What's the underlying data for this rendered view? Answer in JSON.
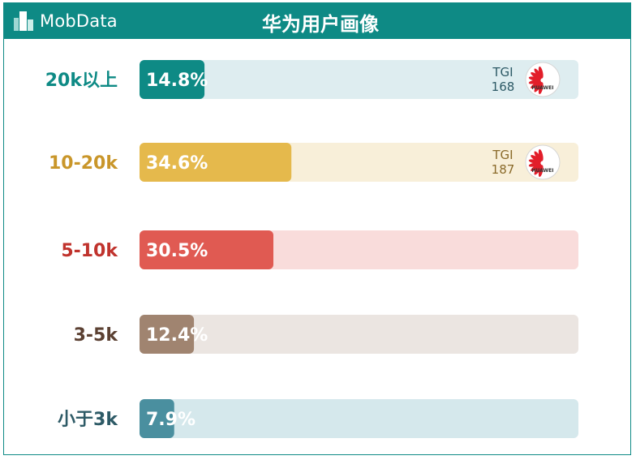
{
  "brand": {
    "name": "MobData",
    "logo_icon": "mobdata-building-icon"
  },
  "chart_data": {
    "type": "bar",
    "orientation": "horizontal",
    "title": "华为用户画像",
    "categories": [
      "20k以上",
      "10-20k",
      "5-10k",
      "3-5k",
      "小于3k"
    ],
    "values": [
      14.8,
      34.6,
      30.5,
      12.4,
      7.9
    ],
    "value_labels": [
      "14.8%",
      "34.6%",
      "30.5%",
      "12.4%",
      "7.9%"
    ],
    "xlim": [
      0,
      100
    ],
    "colors": [
      "#0e8a85",
      "#e5b94c",
      "#e05a52",
      "#a08470",
      "#4a8f9f"
    ],
    "track_colors": [
      "#deedf0",
      "#f8efd9",
      "#f9dcdb",
      "#ebe5e1",
      "#d5e8ec"
    ],
    "label_colors": [
      "#0e8a85",
      "#c9962a",
      "#c0332d",
      "#5b4032",
      "#2d5a66"
    ],
    "tgi": [
      {
        "label": "TGI",
        "value": "168",
        "icon": "huawei-logo-icon",
        "color": "#2d5a66"
      },
      {
        "label": "TGI",
        "value": "187",
        "icon": "huawei-logo-icon",
        "color": "#8a6a2a"
      },
      null,
      null,
      null
    ],
    "tgi_logo_text": "HUAWEI"
  }
}
